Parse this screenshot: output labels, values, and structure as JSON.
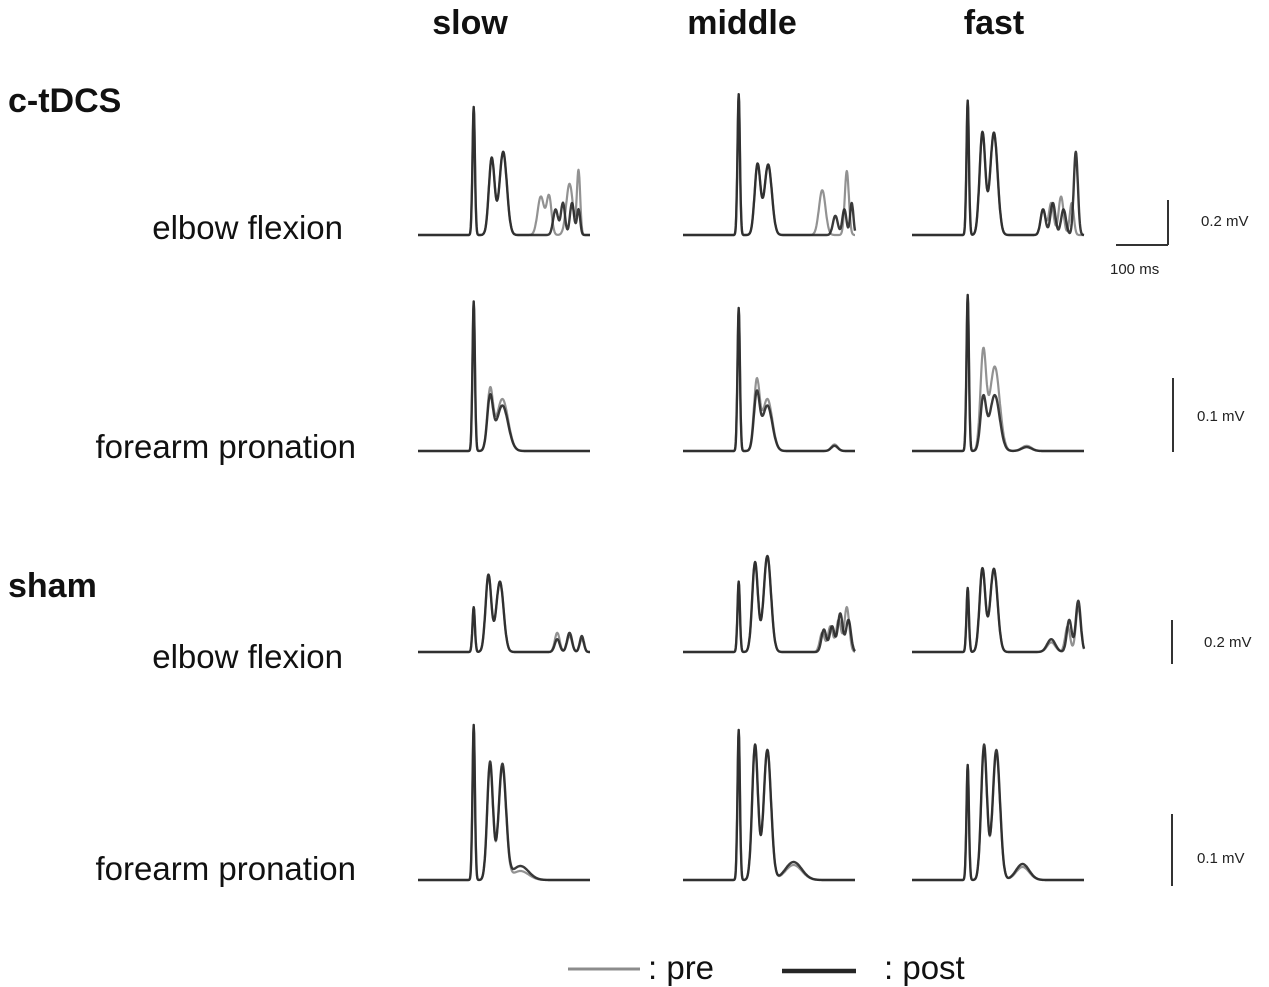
{
  "columns": [
    "slow",
    "middle",
    "fast"
  ],
  "groups": [
    {
      "name": "c-tDCS",
      "rows": [
        "elbow flexion",
        "forearm pronation"
      ]
    },
    {
      "name": "sham",
      "rows": [
        "elbow flexion",
        "forearm pronation"
      ]
    }
  ],
  "scale_bars": {
    "amplitude": [
      "0.2 mV",
      "0.1 mV",
      "0.2 mV",
      "0.1 mV"
    ],
    "time": "100 ms"
  },
  "legend": {
    "pre": ": pre",
    "post": ": post"
  },
  "colors": {
    "pre": "#8c8c8c",
    "post": "#262626"
  },
  "chart_data": {
    "type": "line",
    "title": "",
    "xlabel": "",
    "ylabel": "",
    "x_unit": "ms",
    "y_unit": "mV",
    "duration_ms": 210,
    "grid": false,
    "legend_position": "bottom-center",
    "panels": [
      {
        "group": "c-tDCS",
        "row": "elbow flexion",
        "column": "slow",
        "series": [
          {
            "name": ": pre",
            "peaks": [
              [
                68,
                0.2,
                1.5
              ],
              [
                90,
                0.12,
                3.5
              ],
              [
                104,
                0.13,
                4.5
              ],
              [
                150,
                0.06,
                4
              ],
              [
                160,
                0.06,
                3
              ],
              [
                185,
                0.08,
                4
              ],
              [
                196,
                0.1,
                2
              ]
            ]
          },
          {
            "name": ": post",
            "peaks": [
              [
                68,
                0.2,
                1.5
              ],
              [
                90,
                0.12,
                3.5
              ],
              [
                104,
                0.13,
                4.5
              ],
              [
                168,
                0.04,
                3
              ],
              [
                177,
                0.05,
                2.5
              ],
              [
                188,
                0.05,
                2.5
              ],
              [
                196,
                0.04,
                2
              ]
            ]
          }
        ]
      },
      {
        "group": "c-tDCS",
        "row": "elbow flexion",
        "column": "middle",
        "series": [
          {
            "name": ": pre",
            "peaks": [
              [
                68,
                0.22,
                1.5
              ],
              [
                91,
                0.11,
                3.5
              ],
              [
                104,
                0.11,
                4.5
              ],
              [
                170,
                0.07,
                4
              ],
              [
                200,
                0.1,
                2.5
              ]
            ]
          },
          {
            "name": ": post",
            "peaks": [
              [
                68,
                0.22,
                1.5
              ],
              [
                91,
                0.11,
                3.5
              ],
              [
                104,
                0.11,
                4.5
              ],
              [
                186,
                0.03,
                3
              ],
              [
                197,
                0.04,
                2.5
              ],
              [
                206,
                0.05,
                2
              ]
            ]
          }
        ]
      },
      {
        "group": "c-tDCS",
        "row": "elbow flexion",
        "column": "fast",
        "series": [
          {
            "name": ": pre",
            "peaks": [
              [
                68,
                0.21,
                1.5
              ],
              [
                86,
                0.16,
                3.5
              ],
              [
                100,
                0.16,
                4.5
              ],
              [
                160,
                0.04,
                3
              ],
              [
                170,
                0.05,
                3
              ],
              [
                182,
                0.06,
                3
              ],
              [
                195,
                0.05,
                2.5
              ]
            ]
          },
          {
            "name": ": post",
            "peaks": [
              [
                68,
                0.21,
                1.5
              ],
              [
                86,
                0.16,
                3.5
              ],
              [
                100,
                0.16,
                4.5
              ],
              [
                160,
                0.04,
                3
              ],
              [
                172,
                0.05,
                3
              ],
              [
                185,
                0.04,
                3
              ],
              [
                200,
                0.13,
                2.5
              ]
            ]
          }
        ]
      },
      {
        "group": "c-tDCS",
        "row": "forearm pronation",
        "column": "slow",
        "series": [
          {
            "name": ": pre",
            "peaks": [
              [
                68,
                0.115,
                1.5
              ],
              [
                88,
                0.045,
                3.5
              ],
              [
                103,
                0.04,
                7
              ]
            ]
          },
          {
            "name": ": post",
            "peaks": [
              [
                68,
                0.115,
                1.5
              ],
              [
                88,
                0.04,
                3.5
              ],
              [
                103,
                0.035,
                7
              ]
            ]
          }
        ]
      },
      {
        "group": "c-tDCS",
        "row": "forearm pronation",
        "column": "middle",
        "series": [
          {
            "name": ": pre",
            "peaks": [
              [
                68,
                0.11,
                1.5
              ],
              [
                90,
                0.052,
                3.5
              ],
              [
                103,
                0.04,
                6
              ],
              [
                185,
                0.005,
                4
              ]
            ]
          },
          {
            "name": ": post",
            "peaks": [
              [
                68,
                0.11,
                1.5
              ],
              [
                90,
                0.043,
                3.5
              ],
              [
                103,
                0.035,
                6
              ],
              [
                185,
                0.004,
                4
              ]
            ]
          }
        ]
      },
      {
        "group": "c-tDCS",
        "row": "forearm pronation",
        "column": "fast",
        "series": [
          {
            "name": ": pre",
            "peaks": [
              [
                68,
                0.12,
                1.5
              ],
              [
                87,
                0.075,
                3.5
              ],
              [
                101,
                0.065,
                6
              ],
              [
                140,
                0.004,
                6
              ]
            ]
          },
          {
            "name": ": post",
            "peaks": [
              [
                68,
                0.12,
                1.5
              ],
              [
                87,
                0.04,
                3.5
              ],
              [
                101,
                0.043,
                6
              ],
              [
                140,
                0.003,
                6
              ]
            ]
          }
        ]
      },
      {
        "group": "sham",
        "row": "elbow flexion",
        "column": "slow",
        "series": [
          {
            "name": ": pre",
            "peaks": [
              [
                68,
                0.07,
                1.5
              ],
              [
                86,
                0.12,
                3.5
              ],
              [
                100,
                0.11,
                4.5
              ],
              [
                170,
                0.03,
                3
              ],
              [
                185,
                0.025,
                3
              ],
              [
                200,
                0.02,
                2.5
              ]
            ]
          },
          {
            "name": ": post",
            "peaks": [
              [
                68,
                0.07,
                1.5
              ],
              [
                86,
                0.12,
                3.5
              ],
              [
                100,
                0.11,
                4.5
              ],
              [
                170,
                0.02,
                3
              ],
              [
                185,
                0.03,
                3
              ],
              [
                200,
                0.025,
                2.5
              ]
            ]
          }
        ]
      },
      {
        "group": "sham",
        "row": "elbow flexion",
        "column": "middle",
        "series": [
          {
            "name": ": pre",
            "peaks": [
              [
                68,
                0.11,
                1.5
              ],
              [
                88,
                0.14,
                3.5
              ],
              [
                103,
                0.15,
                4.5
              ],
              [
                170,
                0.03,
                3
              ],
              [
                180,
                0.04,
                3
              ],
              [
                190,
                0.05,
                3
              ],
              [
                200,
                0.07,
                3
              ]
            ]
          },
          {
            "name": ": post",
            "peaks": [
              [
                68,
                0.11,
                1.5
              ],
              [
                88,
                0.14,
                3.5
              ],
              [
                103,
                0.15,
                4.5
              ],
              [
                172,
                0.035,
                3
              ],
              [
                182,
                0.04,
                3
              ],
              [
                192,
                0.06,
                3
              ],
              [
                202,
                0.05,
                3
              ]
            ]
          }
        ]
      },
      {
        "group": "sham",
        "row": "elbow flexion",
        "column": "fast",
        "series": [
          {
            "name": ": pre",
            "peaks": [
              [
                68,
                0.1,
                1.5
              ],
              [
                86,
                0.13,
                3.5
              ],
              [
                100,
                0.13,
                4.5
              ],
              [
                170,
                0.015,
                5
              ],
              [
                190,
                0.04,
                3
              ],
              [
                203,
                0.07,
                3
              ]
            ]
          },
          {
            "name": ": post",
            "peaks": [
              [
                68,
                0.1,
                1.5
              ],
              [
                86,
                0.13,
                3.5
              ],
              [
                100,
                0.13,
                4.5
              ],
              [
                170,
                0.02,
                5
              ],
              [
                192,
                0.05,
                3
              ],
              [
                203,
                0.08,
                3
              ]
            ]
          }
        ]
      },
      {
        "group": "sham",
        "row": "forearm pronation",
        "column": "slow",
        "series": [
          {
            "name": ": pre",
            "peaks": [
              [
                68,
                0.155,
                1.5
              ],
              [
                88,
                0.115,
                3.5
              ],
              [
                103,
                0.112,
                4.5
              ],
              [
                125,
                0.009,
                10
              ]
            ]
          },
          {
            "name": ": post",
            "peaks": [
              [
                68,
                0.155,
                1.5
              ],
              [
                88,
                0.118,
                3.5
              ],
              [
                103,
                0.115,
                4.5
              ],
              [
                125,
                0.014,
                10
              ]
            ]
          }
        ]
      },
      {
        "group": "sham",
        "row": "forearm pronation",
        "column": "middle",
        "series": [
          {
            "name": ": pre",
            "peaks": [
              [
                68,
                0.15,
                1.5
              ],
              [
                88,
                0.135,
                3.5
              ],
              [
                103,
                0.13,
                4.5
              ],
              [
                135,
                0.015,
                10
              ]
            ]
          },
          {
            "name": ": post",
            "peaks": [
              [
                68,
                0.15,
                1.5
              ],
              [
                88,
                0.135,
                3.5
              ],
              [
                103,
                0.13,
                4.5
              ],
              [
                135,
                0.018,
                10
              ]
            ]
          }
        ]
      },
      {
        "group": "sham",
        "row": "forearm pronation",
        "column": "fast",
        "series": [
          {
            "name": ": pre",
            "peaks": [
              [
                68,
                0.115,
                1.5
              ],
              [
                88,
                0.132,
                3.5
              ],
              [
                103,
                0.126,
                4.5
              ],
              [
                135,
                0.013,
                8
              ]
            ]
          },
          {
            "name": ": post",
            "peaks": [
              [
                68,
                0.115,
                1.5
              ],
              [
                88,
                0.135,
                3.5
              ],
              [
                103,
                0.13,
                4.5
              ],
              [
                135,
                0.016,
                8
              ]
            ]
          }
        ]
      }
    ]
  }
}
